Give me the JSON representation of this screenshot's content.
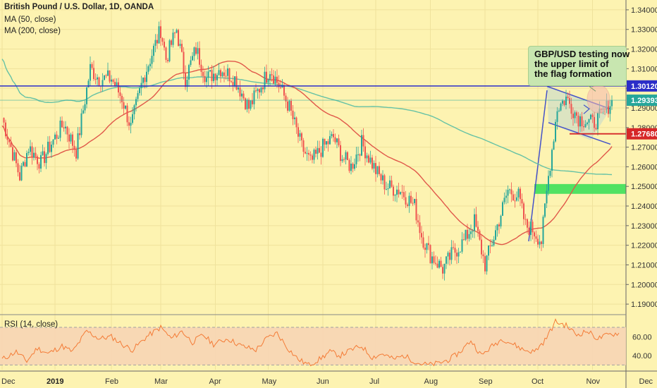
{
  "chart_title": "British Pound / U.S. Dollar, 1D, OANDA",
  "indicators": [
    "MA (50, close)",
    "MA (200, close)"
  ],
  "annotation": {
    "lines": [
      "GBP/USD testing now",
      "the upper limit of",
      "the flag formation"
    ]
  },
  "colors": {
    "background": "#fdf3b1",
    "candle_up": "#26a69a",
    "candle_down": "#ef5350",
    "ma50": "#e0584a",
    "ma200": "#66c2a5",
    "resistance": "#2b2dc8",
    "support": "#d62728",
    "current_price": "#26a69a",
    "flag": "#4452c9",
    "zone": "#3ee05a",
    "rsi_line": "#f47b36",
    "rsi_band": "#f7d5b5"
  },
  "chart_data": {
    "type": "candlestick",
    "y_axis": {
      "range": [
        1.185,
        1.345
      ],
      "ticks": [
        "1.19000",
        "1.20000",
        "1.21000",
        "1.22000",
        "1.23000",
        "1.24000",
        "1.25000",
        "1.26000",
        "1.27000",
        "1.28000",
        "1.29000",
        "1.30000",
        "1.31000",
        "1.32000",
        "1.33000",
        "1.34000"
      ]
    },
    "x_axis": {
      "ticks": [
        {
          "label": "Dec",
          "day": 0
        },
        {
          "label": "2019",
          "day": 30,
          "bold": true
        },
        {
          "label": "Feb",
          "day": 62
        },
        {
          "label": "Mar",
          "day": 90
        },
        {
          "label": "Apr",
          "day": 121
        },
        {
          "label": "May",
          "day": 151
        },
        {
          "label": "Jun",
          "day": 182
        },
        {
          "label": "Jul",
          "day": 212
        },
        {
          "label": "Aug",
          "day": 243
        },
        {
          "label": "Sep",
          "day": 274
        },
        {
          "label": "Oct",
          "day": 304
        },
        {
          "label": "Nov",
          "day": 335
        },
        {
          "label": "Dec",
          "day": 365
        }
      ]
    },
    "price_levels": [
      {
        "label": "1.30120",
        "value": 1.3012,
        "role": "resistance"
      },
      {
        "label": "1.29393",
        "value": 1.29393,
        "role": "current_price"
      },
      {
        "label": "1.27680",
        "value": 1.2768,
        "role": "support"
      }
    ],
    "close_anchors": [
      {
        "day": 0,
        "close": 1.285
      },
      {
        "day": 5,
        "close": 1.27
      },
      {
        "day": 10,
        "close": 1.255
      },
      {
        "day": 15,
        "close": 1.27
      },
      {
        "day": 22,
        "close": 1.262
      },
      {
        "day": 28,
        "close": 1.272
      },
      {
        "day": 35,
        "close": 1.282
      },
      {
        "day": 42,
        "close": 1.268
      },
      {
        "day": 50,
        "close": 1.31
      },
      {
        "day": 55,
        "close": 1.305
      },
      {
        "day": 62,
        "close": 1.305
      },
      {
        "day": 68,
        "close": 1.295
      },
      {
        "day": 73,
        "close": 1.28
      },
      {
        "day": 80,
        "close": 1.305
      },
      {
        "day": 86,
        "close": 1.32
      },
      {
        "day": 90,
        "close": 1.33
      },
      {
        "day": 93,
        "close": 1.315
      },
      {
        "day": 99,
        "close": 1.33
      },
      {
        "day": 104,
        "close": 1.305
      },
      {
        "day": 110,
        "close": 1.32
      },
      {
        "day": 116,
        "close": 1.305
      },
      {
        "day": 124,
        "close": 1.31
      },
      {
        "day": 132,
        "close": 1.305
      },
      {
        "day": 140,
        "close": 1.29
      },
      {
        "day": 146,
        "close": 1.3
      },
      {
        "day": 152,
        "close": 1.31
      },
      {
        "day": 158,
        "close": 1.3
      },
      {
        "day": 163,
        "close": 1.29
      },
      {
        "day": 170,
        "close": 1.27
      },
      {
        "day": 175,
        "close": 1.262
      },
      {
        "day": 182,
        "close": 1.27
      },
      {
        "day": 188,
        "close": 1.275
      },
      {
        "day": 193,
        "close": 1.265
      },
      {
        "day": 198,
        "close": 1.26
      },
      {
        "day": 204,
        "close": 1.272
      },
      {
        "day": 212,
        "close": 1.258
      },
      {
        "day": 218,
        "close": 1.25
      },
      {
        "day": 226,
        "close": 1.248
      },
      {
        "day": 234,
        "close": 1.24
      },
      {
        "day": 238,
        "close": 1.225
      },
      {
        "day": 243,
        "close": 1.215
      },
      {
        "day": 250,
        "close": 1.208
      },
      {
        "day": 255,
        "close": 1.215
      },
      {
        "day": 262,
        "close": 1.222
      },
      {
        "day": 268,
        "close": 1.232
      },
      {
        "day": 274,
        "close": 1.21
      },
      {
        "day": 281,
        "close": 1.23
      },
      {
        "day": 287,
        "close": 1.248
      },
      {
        "day": 293,
        "close": 1.245
      },
      {
        "day": 297,
        "close": 1.23
      },
      {
        "day": 301,
        "close": 1.228
      },
      {
        "day": 306,
        "close": 1.222
      },
      {
        "day": 310,
        "close": 1.255
      },
      {
        "day": 315,
        "close": 1.29
      },
      {
        "day": 320,
        "close": 1.295
      },
      {
        "day": 327,
        "close": 1.285
      },
      {
        "day": 335,
        "close": 1.282
      },
      {
        "day": 340,
        "close": 1.286
      },
      {
        "day": 346,
        "close": 1.2939
      }
    ],
    "rsi": {
      "label": "RSI (14, close)",
      "ticks": [
        "60.00",
        "40.00"
      ],
      "band": [
        30,
        70
      ],
      "range": [
        25,
        82
      ],
      "points": [
        {
          "day": 0,
          "value": 36
        },
        {
          "day": 8,
          "value": 44
        },
        {
          "day": 14,
          "value": 34
        },
        {
          "day": 20,
          "value": 48
        },
        {
          "day": 26,
          "value": 42
        },
        {
          "day": 34,
          "value": 50
        },
        {
          "day": 40,
          "value": 44
        },
        {
          "day": 48,
          "value": 66
        },
        {
          "day": 55,
          "value": 58
        },
        {
          "day": 62,
          "value": 60
        },
        {
          "day": 68,
          "value": 52
        },
        {
          "day": 74,
          "value": 46
        },
        {
          "day": 82,
          "value": 60
        },
        {
          "day": 90,
          "value": 70
        },
        {
          "day": 96,
          "value": 58
        },
        {
          "day": 102,
          "value": 66
        },
        {
          "day": 108,
          "value": 54
        },
        {
          "day": 114,
          "value": 62
        },
        {
          "day": 120,
          "value": 52
        },
        {
          "day": 128,
          "value": 58
        },
        {
          "day": 136,
          "value": 50
        },
        {
          "day": 144,
          "value": 46
        },
        {
          "day": 150,
          "value": 58
        },
        {
          "day": 156,
          "value": 64
        },
        {
          "day": 162,
          "value": 48
        },
        {
          "day": 168,
          "value": 36
        },
        {
          "day": 174,
          "value": 30
        },
        {
          "day": 180,
          "value": 36
        },
        {
          "day": 186,
          "value": 44
        },
        {
          "day": 192,
          "value": 40
        },
        {
          "day": 198,
          "value": 46
        },
        {
          "day": 204,
          "value": 50
        },
        {
          "day": 210,
          "value": 38
        },
        {
          "day": 216,
          "value": 42
        },
        {
          "day": 222,
          "value": 36
        },
        {
          "day": 228,
          "value": 40
        },
        {
          "day": 236,
          "value": 32
        },
        {
          "day": 242,
          "value": 30
        },
        {
          "day": 248,
          "value": 32
        },
        {
          "day": 254,
          "value": 36
        },
        {
          "day": 260,
          "value": 44
        },
        {
          "day": 266,
          "value": 56
        },
        {
          "day": 272,
          "value": 40
        },
        {
          "day": 278,
          "value": 50
        },
        {
          "day": 284,
          "value": 58
        },
        {
          "day": 290,
          "value": 52
        },
        {
          "day": 296,
          "value": 46
        },
        {
          "day": 302,
          "value": 44
        },
        {
          "day": 308,
          "value": 56
        },
        {
          "day": 314,
          "value": 76
        },
        {
          "day": 320,
          "value": 72
        },
        {
          "day": 326,
          "value": 62
        },
        {
          "day": 332,
          "value": 66
        },
        {
          "day": 338,
          "value": 58
        },
        {
          "day": 344,
          "value": 62
        },
        {
          "day": 350,
          "value": 64
        }
      ]
    }
  }
}
